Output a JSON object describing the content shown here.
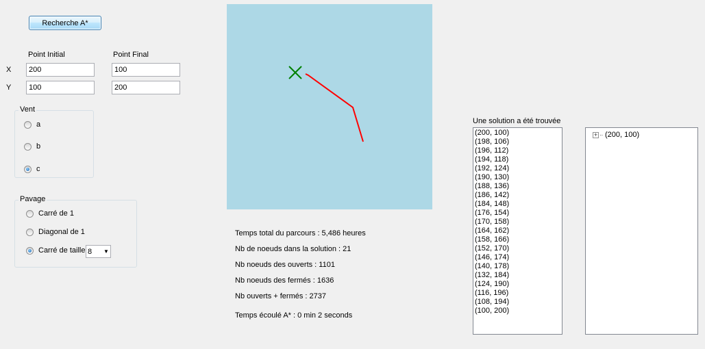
{
  "toolbar": {
    "search_button": "Recherche A*"
  },
  "points": {
    "initial_label": "Point Initial",
    "final_label": "Point Final",
    "x_label": "X",
    "y_label": "Y",
    "initial_x": "200",
    "initial_y": "100",
    "final_x": "100",
    "final_y": "200"
  },
  "vent": {
    "title": "Vent",
    "options": [
      "a",
      "b",
      "c"
    ],
    "selected": "c"
  },
  "pavage": {
    "title": "Pavage",
    "options": [
      "Carré de 1",
      "Diagonal de 1",
      "Carré de taille"
    ],
    "selected": "Carré de taille",
    "size_value": "8"
  },
  "map": {
    "background": "#add8e6",
    "path_color": "#ff0000",
    "marker_color": "#008000"
  },
  "stats": {
    "total_time": "Temps total du parcours : 5,486 heures",
    "nodes_solution": "Nb de noeuds dans la solution : 21",
    "nodes_open": "Nb noeuds des ouverts : 1101",
    "nodes_closed": "Nb noeuds des fermés : 1636",
    "open_closed": "Nb ouverts + fermés : 2737",
    "elapsed": "Temps écoulé A* : 0 min 2 seconds"
  },
  "solution": {
    "title": "Une solution a été trouvée",
    "items": [
      "(200, 100)",
      "(198, 106)",
      "(196, 112)",
      "(194, 118)",
      "(192, 124)",
      "(190, 130)",
      "(188, 136)",
      "(186, 142)",
      "(184, 148)",
      "(176, 154)",
      "(170, 158)",
      "(164, 162)",
      "(158, 166)",
      "(152, 170)",
      "(146, 174)",
      "(140, 178)",
      "(132, 184)",
      "(124, 190)",
      "(116, 196)",
      "(108, 194)",
      "(100, 200)"
    ]
  },
  "tree": {
    "root": "(200, 100)"
  }
}
